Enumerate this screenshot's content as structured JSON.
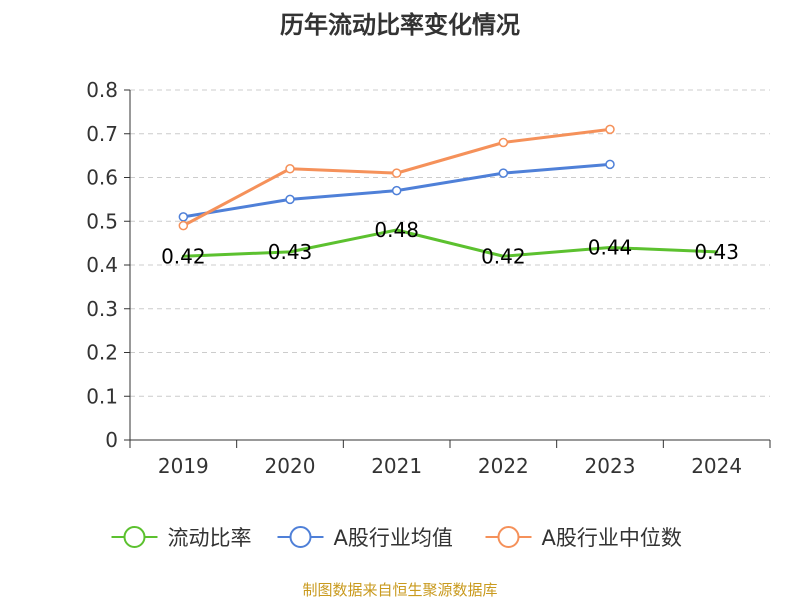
{
  "title": "历年流动比率变化情况",
  "source": "制图数据来自恒生聚源数据库",
  "colors": {
    "grid": "#cccccc",
    "axis": "#333333"
  },
  "chart_data": {
    "type": "line",
    "categories": [
      "2019",
      "2020",
      "2021",
      "2022",
      "2023",
      "2024"
    ],
    "ylim": [
      0,
      0.8
    ],
    "yticks": [
      "0",
      "0.1",
      "0.2",
      "0.3",
      "0.4",
      "0.5",
      "0.6",
      "0.7",
      "0.8"
    ],
    "grid": true,
    "legend_position": "bottom",
    "series": [
      {
        "name": "流动比率",
        "color": "#5cc12f",
        "values": [
          0.42,
          0.43,
          0.48,
          0.42,
          0.44,
          0.43
        ],
        "labels": [
          "0.42",
          "0.43",
          "0.48",
          "0.42",
          "0.44",
          "0.43"
        ],
        "show_markers": false,
        "show_labels": true
      },
      {
        "name": "A股行业均值",
        "color": "#4f80d8",
        "values": [
          0.51,
          0.55,
          0.57,
          0.61,
          0.63,
          null
        ],
        "show_markers": true,
        "show_labels": false
      },
      {
        "name": "A股行业中位数",
        "color": "#f5915a",
        "values": [
          0.49,
          0.62,
          0.61,
          0.68,
          0.71,
          null
        ],
        "show_markers": true,
        "show_labels": false
      }
    ]
  }
}
